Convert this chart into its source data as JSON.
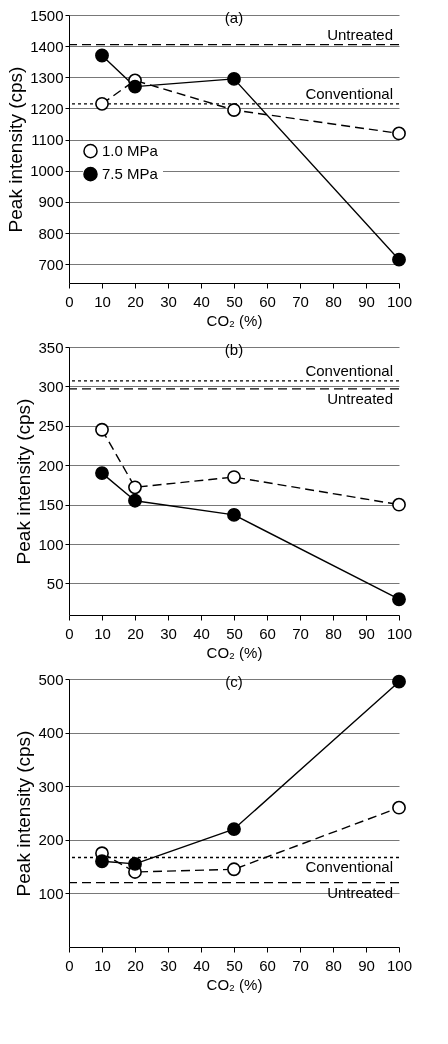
{
  "chart_data": [
    {
      "type": "line",
      "title": "(a)",
      "xlabel": "CO₂ (%)",
      "ylabel": "Peak intensity (cps)",
      "x": [
        10,
        20,
        50,
        100
      ],
      "xlim": [
        0,
        100
      ],
      "xticks": [
        0,
        10,
        20,
        30,
        40,
        50,
        60,
        70,
        80,
        90,
        100
      ],
      "ylim": [
        640,
        1500
      ],
      "yticks": [
        700,
        800,
        900,
        1000,
        1100,
        1200,
        1300,
        1400,
        1500
      ],
      "grid": "y",
      "marker": "circle",
      "legend": "left",
      "series": [
        {
          "name": "1.0  MPa",
          "color": "#ffffff",
          "line_style": "dashed",
          "values": [
            1215,
            1290,
            1195,
            1120
          ]
        },
        {
          "name": "7.5  MPa",
          "color": "#000000",
          "line_style": "solid",
          "values": [
            1370,
            1270,
            1295,
            715
          ]
        }
      ],
      "ref_lines": [
        {
          "axis": "y",
          "value": 1405,
          "label": "Untreated",
          "line_style": "dashed"
        },
        {
          "axis": "y",
          "value": 1215,
          "label": "Conventional",
          "line_style": "dotted"
        }
      ]
    },
    {
      "type": "line",
      "title": "(b)",
      "xlabel": "CO₂ (%)",
      "ylabel": "Peak intensity (cps)",
      "x": [
        10,
        20,
        50,
        100
      ],
      "xlim": [
        0,
        100
      ],
      "xticks": [
        0,
        10,
        20,
        30,
        40,
        50,
        60,
        70,
        80,
        90,
        100
      ],
      "ylim": [
        10,
        350
      ],
      "yticks": [
        50,
        100,
        150,
        200,
        250,
        300,
        350
      ],
      "grid": "y",
      "marker": "circle",
      "series": [
        {
          "color": "#ffffff",
          "line_style": "dashed",
          "values": [
            245,
            172,
            185,
            150
          ]
        },
        {
          "color": "#000000",
          "line_style": "solid",
          "values": [
            190,
            155,
            137,
            30
          ]
        }
      ],
      "ref_lines": [
        {
          "axis": "y",
          "value": 307,
          "label": "Conventional",
          "line_style": "dotted"
        },
        {
          "axis": "y",
          "value": 297,
          "label": "Untreated",
          "line_style": "dashed"
        }
      ]
    },
    {
      "type": "line",
      "title": "(c)",
      "xlabel": "CO₂ (%)",
      "ylabel": "Peak intensity (cps)",
      "x": [
        10,
        20,
        50,
        100
      ],
      "xlim": [
        0,
        100
      ],
      "xticks": [
        0,
        10,
        20,
        30,
        40,
        50,
        60,
        70,
        80,
        90,
        100
      ],
      "ylim": [
        0,
        500
      ],
      "yticks": [
        100,
        200,
        300,
        400,
        500
      ],
      "grid": "y",
      "marker": "circle",
      "series": [
        {
          "color": "#ffffff",
          "line_style": "dashed",
          "values": [
            175,
            140,
            145,
            260
          ]
        },
        {
          "color": "#000000",
          "line_style": "solid",
          "values": [
            160,
            155,
            220,
            495
          ]
        }
      ],
      "ref_lines": [
        {
          "axis": "y",
          "value": 167,
          "label": "Conventional",
          "line_style": "dotted"
        },
        {
          "axis": "y",
          "value": 120,
          "label": "Untreated",
          "line_style": "dashed"
        }
      ]
    }
  ]
}
